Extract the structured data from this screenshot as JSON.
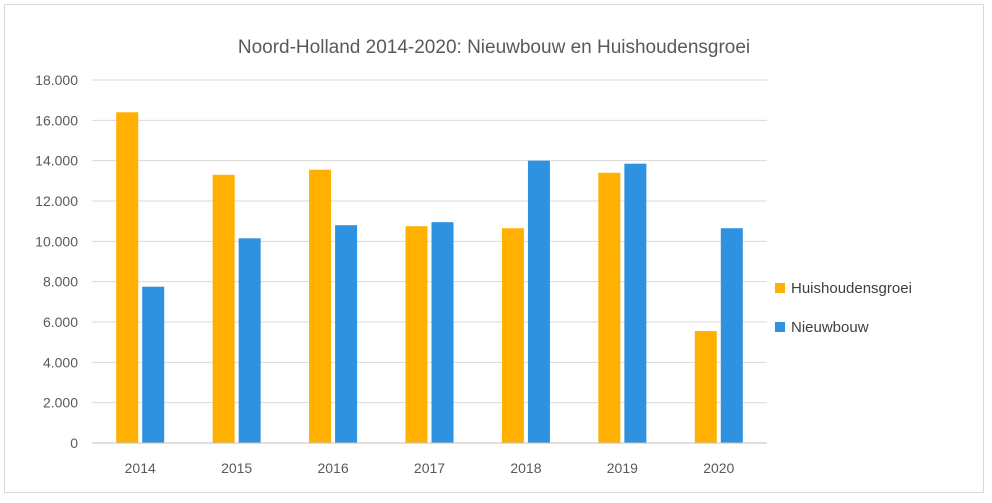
{
  "chart_data": {
    "type": "bar",
    "title": "Noord-Holland 2014-2020: Nieuwbouw en Huishoudensgroei",
    "xlabel": "",
    "ylabel": "",
    "categories": [
      "2014",
      "2015",
      "2016",
      "2017",
      "2018",
      "2019",
      "2020"
    ],
    "series": [
      {
        "name": "Huishoudensgroei",
        "color": "#FFB000",
        "values": [
          16400,
          13300,
          13550,
          10750,
          10650,
          13400,
          5550
        ]
      },
      {
        "name": "Nieuwbouw",
        "color": "#2E92E0",
        "values": [
          7750,
          10150,
          10800,
          10950,
          14000,
          13850,
          10650
        ]
      }
    ],
    "ylim": [
      0,
      18000
    ],
    "yticks": [
      0,
      2000,
      4000,
      6000,
      8000,
      10000,
      12000,
      14000,
      16000,
      18000
    ],
    "ytick_labels": [
      "0",
      "2.000",
      "4.000",
      "6.000",
      "8.000",
      "10.000",
      "12.000",
      "14.000",
      "16.000",
      "18.000"
    ],
    "grid": true,
    "legend_position": "right"
  }
}
